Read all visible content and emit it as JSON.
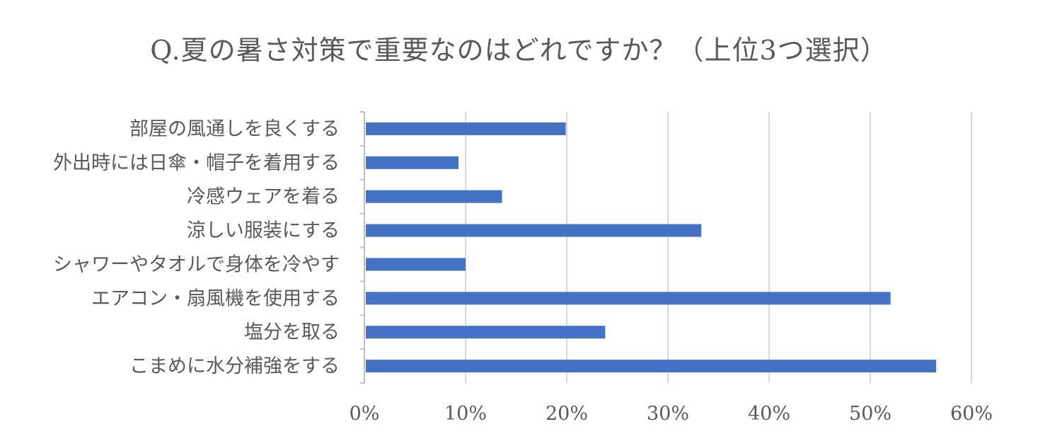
{
  "chart_data": {
    "type": "bar",
    "orientation": "horizontal",
    "title": "Q.夏の暑さ対策で重要なのはどれですか？（上位3つ選択）",
    "xlabel": "",
    "ylabel": "",
    "categories": [
      "部屋の風通しを良くする",
      "外出時には日傘・帽子を着用する",
      "冷感ウェアを着る",
      "涼しい服装にする",
      "シャワーやタオルで身体を冷やす",
      "エアコン・扇風機を使用する",
      "塩分を取る",
      "こまめに水分補強をする"
    ],
    "values": [
      19.9,
      9.3,
      13.6,
      33.3,
      10.0,
      52.0,
      23.8,
      56.5
    ],
    "xlim": [
      0,
      60
    ],
    "ticks": [
      0,
      10,
      20,
      30,
      40,
      50,
      60
    ],
    "tick_labels": [
      "0%",
      "10%",
      "20%",
      "30%",
      "40%",
      "50%",
      "60%"
    ],
    "grid": true,
    "legend": "none",
    "colors": {
      "bar": "#4472c4",
      "grid": "#d9d9d9",
      "text": "#595959"
    }
  }
}
